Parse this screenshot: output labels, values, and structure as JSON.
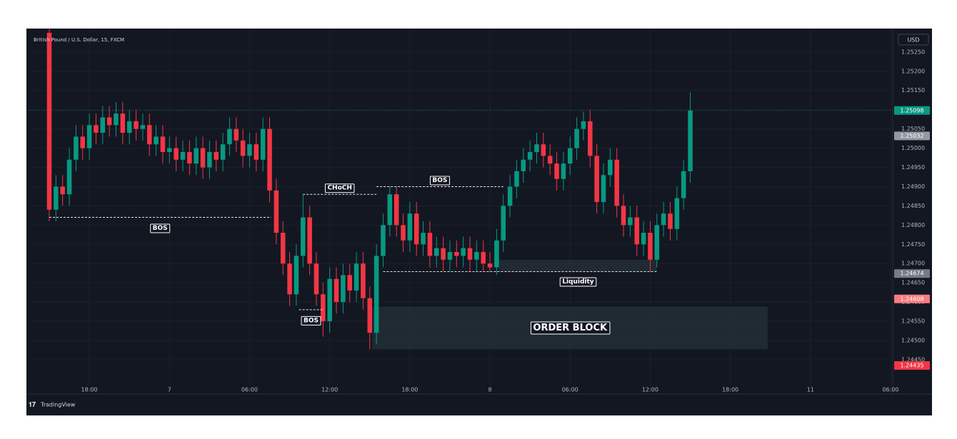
{
  "chart_data": {
    "type": "candlestick",
    "title": "British Pound / U.S. Dollar, 15, FXCM",
    "currency": "USD",
    "brand": "TradingView",
    "up_color": "#089981",
    "down_color": "#f23645",
    "grid": true,
    "x": [
      15,
      15.5,
      16,
      16.5,
      17,
      17.5,
      18,
      18.5,
      19,
      19.5,
      20,
      20.5,
      21,
      21.5,
      22,
      22.5,
      23,
      23.5,
      24,
      24.5,
      25,
      25.5,
      26,
      26.5,
      27,
      27.5,
      28,
      28.5,
      29,
      29.5,
      30,
      30.5,
      31,
      31.5,
      32,
      32.5,
      33,
      33.5,
      34,
      34.5,
      35,
      35.5,
      36,
      36.5,
      37,
      37.5,
      38,
      38.5,
      39,
      39.5,
      40,
      40.5,
      41,
      41.5,
      42,
      42.5,
      43,
      43.5,
      44,
      44.5,
      45,
      45.5,
      46,
      46.5,
      47,
      47.5,
      48,
      48.5,
      49,
      49.5,
      50,
      50.5,
      51,
      51.5,
      52,
      52.5,
      53,
      53.5,
      54,
      54.5,
      55,
      55.5,
      56,
      56.5,
      57,
      57.5,
      58,
      58.5,
      59,
      59.5,
      60,
      60.5,
      61,
      61.5,
      62,
      62.5,
      63
    ],
    "open": [
      1.253,
      1.2484,
      1.249,
      1.2488,
      1.2497,
      1.2503,
      1.25,
      1.2506,
      1.2504,
      1.2508,
      1.2506,
      1.2509,
      1.2504,
      1.2507,
      1.2505,
      1.2506,
      1.2501,
      1.2503,
      1.2499,
      1.25,
      1.2497,
      1.2499,
      1.2496,
      1.25,
      1.2495,
      1.2499,
      1.2497,
      1.2501,
      1.2505,
      1.2502,
      1.2498,
      1.2501,
      1.2497,
      1.2505,
      1.2489,
      1.2478,
      1.247,
      1.2462,
      1.2472,
      1.2482,
      1.247,
      1.2462,
      1.2455,
      1.2466,
      1.246,
      1.2467,
      1.2463,
      1.247,
      1.2461,
      1.2452,
      1.2472,
      1.248,
      1.2488,
      1.248,
      1.2476,
      1.2483,
      1.2475,
      1.2478,
      1.2472,
      1.2474,
      1.2471,
      1.2473,
      1.2472,
      1.2474,
      1.2471,
      1.2473,
      1.247,
      1.2469,
      1.2476,
      1.2485,
      1.249,
      1.2494,
      1.2497,
      1.2499,
      1.2501,
      1.2498,
      1.2496,
      1.2492,
      1.2496,
      1.25,
      1.2505,
      1.2507,
      1.2498,
      1.2486,
      1.2493,
      1.2497,
      1.2485,
      1.248,
      1.2482,
      1.2475,
      1.2478,
      1.2471,
      1.248,
      1.2483,
      1.2479,
      1.2487,
      1.2494
    ],
    "high": [
      1.2531,
      1.2493,
      1.2493,
      1.25,
      1.2506,
      1.2506,
      1.2509,
      1.2509,
      1.2511,
      1.2511,
      1.2512,
      1.2512,
      1.251,
      1.251,
      1.2509,
      1.2509,
      1.2506,
      1.2506,
      1.2503,
      1.2503,
      1.2502,
      1.2502,
      1.2503,
      1.2503,
      1.2502,
      1.2502,
      1.2504,
      1.2508,
      1.2508,
      1.2505,
      1.2504,
      1.2504,
      1.2508,
      1.2508,
      1.2492,
      1.2481,
      1.2473,
      1.2475,
      1.2488,
      1.2485,
      1.2473,
      1.2465,
      1.2469,
      1.2469,
      1.247,
      1.247,
      1.2473,
      1.2473,
      1.2464,
      1.2475,
      1.2483,
      1.249,
      1.249,
      1.2483,
      1.2486,
      1.2486,
      1.2481,
      1.2481,
      1.2477,
      1.2477,
      1.2476,
      1.2476,
      1.2477,
      1.2477,
      1.2476,
      1.2476,
      1.2473,
      1.2479,
      1.2488,
      1.2493,
      1.2497,
      1.25,
      1.2502,
      1.2504,
      1.2504,
      1.2501,
      1.2499,
      1.2499,
      1.2503,
      1.2508,
      1.25095,
      1.251,
      1.2501,
      1.2496,
      1.25,
      1.25,
      1.2488,
      1.2485,
      1.2485,
      1.2481,
      1.2481,
      1.2483,
      1.2486,
      1.2486,
      1.249,
      1.2497,
      1.25145
    ],
    "low": [
      1.2481,
      1.2481,
      1.2485,
      1.2485,
      1.2494,
      1.2497,
      1.2497,
      1.2501,
      1.2501,
      1.2503,
      1.2503,
      1.2501,
      1.2501,
      1.2502,
      1.2502,
      1.2498,
      1.2498,
      1.2496,
      1.2496,
      1.2494,
      1.2494,
      1.2493,
      1.2493,
      1.2492,
      1.2492,
      1.2494,
      1.2494,
      1.2498,
      1.2499,
      1.2495,
      1.2495,
      1.2494,
      1.2494,
      1.2486,
      1.2475,
      1.2467,
      1.2459,
      1.2459,
      1.2469,
      1.2467,
      1.2459,
      1.2451,
      1.2452,
      1.2457,
      1.2457,
      1.246,
      1.246,
      1.2458,
      1.24477,
      1.2449,
      1.2469,
      1.2477,
      1.2477,
      1.2473,
      1.2473,
      1.2472,
      1.2472,
      1.2469,
      1.2469,
      1.2468,
      1.2468,
      1.2469,
      1.2469,
      1.2468,
      1.2468,
      1.2468,
      1.24679,
      1.2467,
      1.2473,
      1.2482,
      1.2487,
      1.2491,
      1.2494,
      1.2496,
      1.2495,
      1.2493,
      1.2489,
      1.2489,
      1.2493,
      1.2497,
      1.2502,
      1.2495,
      1.2483,
      1.2483,
      1.249,
      1.2482,
      1.2477,
      1.2477,
      1.2472,
      1.2472,
      1.2468,
      1.2469,
      1.2477,
      1.2476,
      1.2476,
      1.2484,
      1.2491
    ],
    "close": [
      1.2484,
      1.249,
      1.2488,
      1.2497,
      1.2503,
      1.25,
      1.2506,
      1.2504,
      1.2508,
      1.2506,
      1.2509,
      1.2504,
      1.2507,
      1.2505,
      1.2506,
      1.2501,
      1.2503,
      1.2499,
      1.25,
      1.2497,
      1.2499,
      1.2496,
      1.25,
      1.2495,
      1.2499,
      1.2497,
      1.2501,
      1.2505,
      1.2502,
      1.2498,
      1.2501,
      1.2497,
      1.2505,
      1.2489,
      1.2478,
      1.247,
      1.2462,
      1.2472,
      1.2482,
      1.247,
      1.2462,
      1.2455,
      1.2466,
      1.246,
      1.2467,
      1.2463,
      1.247,
      1.2461,
      1.2452,
      1.2472,
      1.248,
      1.2488,
      1.248,
      1.2476,
      1.2483,
      1.2475,
      1.2478,
      1.2472,
      1.2474,
      1.2471,
      1.2473,
      1.2472,
      1.2474,
      1.2471,
      1.2473,
      1.247,
      1.2469,
      1.2476,
      1.2485,
      1.249,
      1.2494,
      1.2497,
      1.2499,
      1.2501,
      1.2498,
      1.2496,
      1.2492,
      1.2496,
      1.25,
      1.2505,
      1.2507,
      1.2498,
      1.2486,
      1.2493,
      1.2497,
      1.2485,
      1.248,
      1.2482,
      1.2475,
      1.2478,
      1.2471,
      1.248,
      1.2483,
      1.2479,
      1.2487,
      1.2494,
      1.25098
    ],
    "xlim": [
      13.45,
      78.16
    ],
    "ylim": [
      1.24383,
      1.25311
    ],
    "xticks": [
      {
        "value": 18,
        "label": "18:00"
      },
      {
        "value": 24,
        "label": "7"
      },
      {
        "value": 30,
        "label": "06:00"
      },
      {
        "value": 36,
        "label": "12:00"
      },
      {
        "value": 42,
        "label": "18:00"
      },
      {
        "value": 48,
        "label": "8"
      },
      {
        "value": 54,
        "label": "06:00"
      },
      {
        "value": 60,
        "label": "12:00"
      },
      {
        "value": 66,
        "label": "18:00"
      },
      {
        "value": 72,
        "label": "11"
      },
      {
        "value": 78,
        "label": "06:00"
      }
    ],
    "yticks": [
      {
        "value": 1.2445,
        "label": "1.24450"
      },
      {
        "value": 1.245,
        "label": "1.24500"
      },
      {
        "value": 1.2455,
        "label": "1.24550"
      },
      {
        "value": 1.246,
        "label": "1.24600"
      },
      {
        "value": 1.2465,
        "label": "1.24650"
      },
      {
        "value": 1.247,
        "label": "1.24700"
      },
      {
        "value": 1.2475,
        "label": "1.24750"
      },
      {
        "value": 1.248,
        "label": "1.24800"
      },
      {
        "value": 1.2485,
        "label": "1.24850"
      },
      {
        "value": 1.249,
        "label": "1.24900"
      },
      {
        "value": 1.2495,
        "label": "1.24950"
      },
      {
        "value": 1.25,
        "label": "1.25000"
      },
      {
        "value": 1.2505,
        "label": "1.25050"
      },
      {
        "value": 1.251,
        "label": "1.25100"
      },
      {
        "value": 1.2515,
        "label": "1.25150"
      },
      {
        "value": 1.252,
        "label": "1.25200"
      },
      {
        "value": 1.2525,
        "label": "1.25250"
      }
    ],
    "price_labels": [
      {
        "value": 1.25098,
        "color": "#089981",
        "line": true
      },
      {
        "value": 1.25032,
        "color": "#9598a1",
        "line": false
      },
      {
        "value": 1.24674,
        "color": "#787b86",
        "line": false
      },
      {
        "value": 1.24608,
        "color": "#f77c80",
        "line": false
      },
      {
        "value": 1.24435,
        "color": "#f23645",
        "line": false
      }
    ],
    "levels": [
      {
        "text": "BOS",
        "level": 1.2482,
        "x": [
          15,
          31.6
        ],
        "side": "below"
      },
      {
        "text": "CHoCH",
        "level": 1.2488,
        "x": [
          34,
          39.5
        ],
        "side": "above"
      },
      {
        "text": "BOS",
        "level": 1.2458,
        "x": [
          33.7,
          35.5
        ],
        "side": "below"
      },
      {
        "text": "BOS",
        "level": 1.249,
        "x": [
          39.5,
          49
        ],
        "side": "above"
      },
      {
        "level": 1.24679,
        "x": [
          40,
          60.5
        ]
      }
    ],
    "zones": [
      {
        "text": "Liquidity",
        "range": [
          1.24679,
          1.2471
        ],
        "x": [
          48.7,
          60.5
        ],
        "side": "below"
      },
      {
        "text": "ORDER BLOCK",
        "range": [
          1.24477,
          1.24588
        ],
        "x": [
          39.2,
          68.8
        ],
        "side": "center"
      }
    ]
  }
}
